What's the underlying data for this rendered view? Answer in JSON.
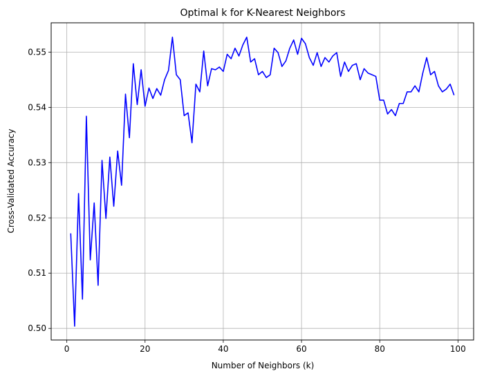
{
  "chart_data": {
    "type": "line",
    "title": "Optimal k for K-Nearest Neighbors",
    "xlabel": "Number of Neighbors (k)",
    "ylabel": "Cross-Validated Accuracy",
    "xlim": [
      -4,
      104
    ],
    "ylim": [
      0.4979,
      0.5553
    ],
    "xticks": [
      0,
      20,
      40,
      60,
      80,
      100
    ],
    "yticks": [
      0.5,
      0.51,
      0.52,
      0.53,
      0.54,
      0.55
    ],
    "ytick_labels": [
      "0.50",
      "0.51",
      "0.52",
      "0.53",
      "0.54",
      "0.55"
    ],
    "grid": true,
    "line_color": "#0000ff",
    "x": [
      1,
      2,
      3,
      4,
      5,
      6,
      7,
      8,
      9,
      10,
      11,
      12,
      13,
      14,
      15,
      16,
      17,
      18,
      19,
      20,
      21,
      22,
      23,
      24,
      25,
      26,
      27,
      28,
      29,
      30,
      31,
      32,
      33,
      34,
      35,
      36,
      37,
      38,
      39,
      40,
      41,
      42,
      43,
      44,
      45,
      46,
      47,
      48,
      49,
      50,
      51,
      52,
      53,
      54,
      55,
      56,
      57,
      58,
      59,
      60,
      61,
      62,
      63,
      64,
      65,
      66,
      67,
      68,
      69,
      70,
      71,
      72,
      73,
      74,
      75,
      76,
      77,
      78,
      79,
      80,
      81,
      82,
      83,
      84,
      85,
      86,
      87,
      88,
      89,
      90,
      91,
      92,
      93,
      94,
      95,
      96,
      97,
      98,
      99
    ],
    "y": [
      0.5172,
      0.5004,
      0.5244,
      0.5053,
      0.5384,
      0.5124,
      0.5227,
      0.5078,
      0.5304,
      0.5199,
      0.531,
      0.5221,
      0.5321,
      0.5259,
      0.5424,
      0.5345,
      0.5479,
      0.5405,
      0.5468,
      0.5402,
      0.5435,
      0.5416,
      0.5434,
      0.5422,
      0.545,
      0.5467,
      0.5527,
      0.5459,
      0.545,
      0.5385,
      0.539,
      0.5336,
      0.5442,
      0.5428,
      0.5502,
      0.5439,
      0.547,
      0.5468,
      0.5473,
      0.5465,
      0.5496,
      0.5488,
      0.5507,
      0.5493,
      0.5513,
      0.5527,
      0.5482,
      0.5488,
      0.5459,
      0.5465,
      0.5454,
      0.5459,
      0.5507,
      0.5499,
      0.5474,
      0.5484,
      0.5507,
      0.5522,
      0.5496,
      0.5525,
      0.5515,
      0.549,
      0.5476,
      0.5499,
      0.5474,
      0.549,
      0.5482,
      0.5493,
      0.5499,
      0.5456,
      0.5482,
      0.5465,
      0.5476,
      0.5479,
      0.545,
      0.547,
      0.5462,
      0.5459,
      0.5456,
      0.5413,
      0.5413,
      0.5388,
      0.5396,
      0.5385,
      0.5407,
      0.5407,
      0.5428,
      0.5428,
      0.5439,
      0.5428,
      0.5462,
      0.549,
      0.5459,
      0.5465,
      0.5439,
      0.5428,
      0.5433,
      0.5442,
      0.5422
    ]
  }
}
